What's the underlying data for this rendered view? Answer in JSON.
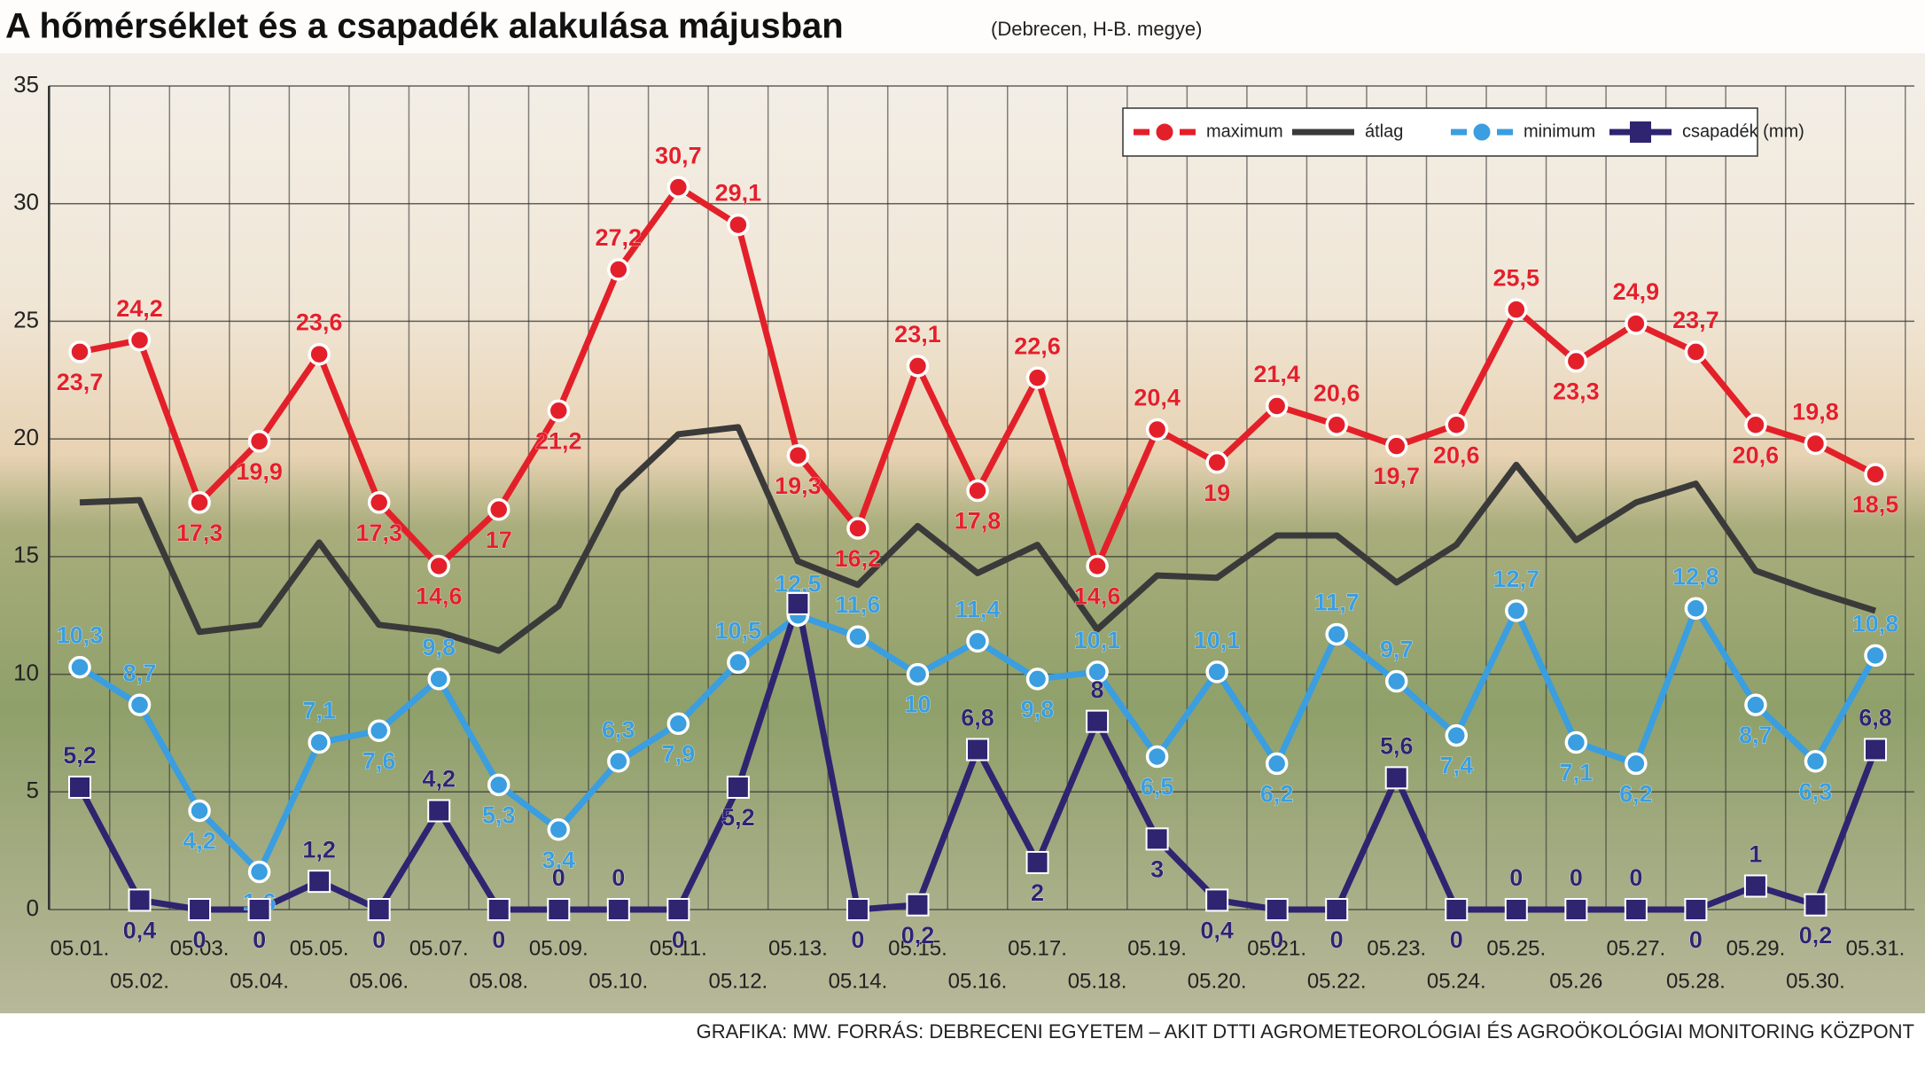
{
  "chart_data": {
    "type": "line",
    "title": "A hőmérséklet és a csapadék alakulása májusban",
    "subtitle": "(Debrecen, H-B. megye)",
    "source": "GRAFIKA: MW. FORRÁS: DEBRECENI EGYETEM – AKIT DTTI AGROMETEOROLÓGIAI ÉS AGROÖKOLÓGIAI MONITORING KÖZPONT",
    "categories": [
      "05.01.",
      "05.02.",
      "05.03.",
      "05.04.",
      "05.05.",
      "05.06.",
      "05.07.",
      "05.08.",
      "05.09.",
      "05.10.",
      "05.11.",
      "05.12.",
      "05.13.",
      "05.14.",
      "05.15.",
      "05.16.",
      "05.17.",
      "05.18.",
      "05.19.",
      "05.20.",
      "05.21.",
      "05.22.",
      "05.23.",
      "05.24.",
      "05.25.",
      "05.26",
      "05.27.",
      "05.28.",
      "05.29.",
      "05.30.",
      "05.31."
    ],
    "ylim": [
      0,
      35
    ],
    "yticks": [
      0,
      5,
      10,
      15,
      20,
      25,
      30,
      35
    ],
    "grid": true,
    "legend": "upper right",
    "series": [
      {
        "name": "maximum",
        "color": "#e3202a",
        "marker": "circle",
        "values": [
          23.7,
          24.2,
          17.3,
          19.9,
          23.6,
          17.3,
          14.6,
          17,
          21.2,
          27.2,
          30.7,
          29.1,
          19.3,
          16.2,
          23.1,
          17.8,
          22.6,
          14.6,
          20.4,
          19,
          21.4,
          20.6,
          19.7,
          20.6,
          25.5,
          23.3,
          24.9,
          23.7,
          20.6,
          19.8,
          18.5
        ],
        "value_labels": [
          "23,7",
          "24,2",
          "17,3",
          "19,9",
          "23,6",
          "17,3",
          "14,6",
          "17",
          "21,2",
          "27,2",
          "30,7",
          "29,1",
          "19,3",
          "16,2",
          "23,1",
          "17,8",
          "22,6",
          "14,6",
          "20,4",
          "19",
          "21,4",
          "20,6",
          "19,7",
          "20,6",
          "25,5",
          "23,3",
          "24,9",
          "23,7",
          "20,6",
          "19,8",
          "18,5"
        ]
      },
      {
        "name": "átlag",
        "color": "#3a3a3a",
        "marker": "none",
        "values": [
          17.3,
          17.4,
          11.8,
          12.1,
          15.6,
          12.1,
          11.8,
          11.0,
          12.9,
          17.8,
          20.2,
          20.5,
          14.8,
          13.8,
          16.3,
          14.3,
          15.5,
          11.9,
          14.2,
          14.1,
          15.9,
          15.9,
          13.9,
          15.5,
          18.9,
          15.7,
          17.3,
          18.1,
          14.4,
          13.5,
          12.7
        ]
      },
      {
        "name": "minimum",
        "color": "#3a9ee0",
        "marker": "circle",
        "values": [
          10.3,
          8.7,
          4.2,
          1.6,
          7.1,
          7.6,
          9.8,
          5.3,
          3.4,
          6.3,
          7.9,
          10.5,
          12.5,
          11.6,
          10,
          11.4,
          9.8,
          10.1,
          6.5,
          10.1,
          6.2,
          11.7,
          9.7,
          7.4,
          12.7,
          7.1,
          6.2,
          12.8,
          8.7,
          6.3,
          10.8
        ],
        "value_labels": [
          "10,3",
          "8,7",
          "4,2",
          "1,6",
          "7,1",
          "7,6",
          "9,8",
          "5,3",
          "3,4",
          "6,3",
          "7,9",
          "10,5",
          "12,5",
          "11,6",
          "10",
          "11,4",
          "9,8",
          "10,1",
          "6,5",
          "10,1",
          "6,2",
          "11,7",
          "9,7",
          "7,4",
          "12,7",
          "7,1",
          "6,2",
          "12,8",
          "8,7",
          "6,3",
          "10,8"
        ]
      },
      {
        "name": "csapadék (mm)",
        "color": "#2e2470",
        "marker": "square",
        "values": [
          5.2,
          0.4,
          0,
          0,
          1.2,
          0,
          4.2,
          0,
          0,
          0,
          0,
          5.2,
          13,
          0,
          0.2,
          6.8,
          2,
          8,
          3,
          0.4,
          0,
          0,
          5.6,
          0,
          0,
          0,
          0,
          0,
          1,
          0.2,
          6.8
        ],
        "value_labels": [
          "5,2",
          "0,4",
          "0",
          "0",
          "1,2",
          "0",
          "4,2",
          "0",
          "0",
          "0",
          "0",
          "5,2",
          null,
          "0",
          "0,2",
          "6,8",
          "2",
          "8",
          "3",
          "0,4",
          "0",
          "0",
          "5,6",
          "0",
          "0",
          "0",
          "0",
          "0",
          "1",
          "0,2",
          "6,8"
        ]
      }
    ]
  }
}
